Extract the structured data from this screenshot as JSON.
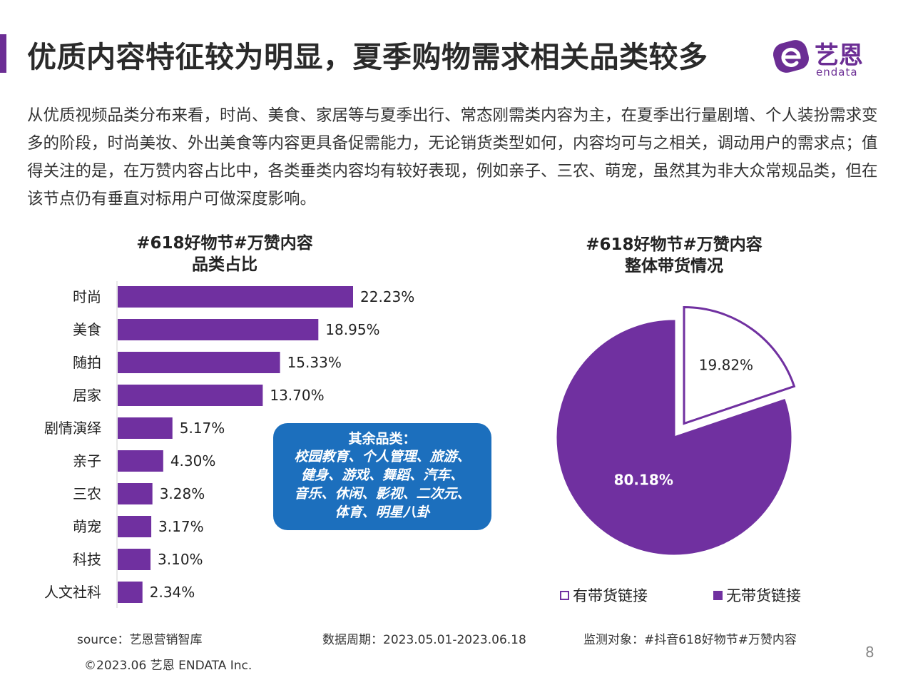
{
  "header": {
    "title": "优质内容特征较为明显，夏季购物需求相关品类较多",
    "logo_cn": "艺恩",
    "logo_en": "endata"
  },
  "intro": "从优质视频品类分布来看，时尚、美食、家居等与夏季出行、常态刚需类内容为主，在夏季出行量剧增、个人装扮需求变多的阶段，时尚美妆、外出美食等内容更具备促需能力，无论销货类型如何，内容均可与之相关，调动用户的需求点；值得关注的是，在万赞内容占比中，各类垂类内容均有较好表现，例如亲子、三农、萌宠，虽然其为非大众常规品类，但在该节点仍有垂直对标用户可做深度影响。",
  "bar_chart_title": [
    "#618好物节#万赞内容",
    "品类占比"
  ],
  "pie_chart_title": [
    "#618好物节#万赞内容",
    "整体带货情况"
  ],
  "callout": {
    "heading": "其余品类：",
    "lines": [
      "校园教育、个人管理、旅游、",
      "健身、游戏、舞蹈、汽车、",
      "音乐、休闲、影视、二次元、",
      "体育、明星八卦"
    ]
  },
  "colors": {
    "accent": "#6b2d94",
    "bar": "#7030a0",
    "callout": "#1c6fbd",
    "pie_highlight": "#ffffff"
  },
  "chart_data": [
    {
      "type": "bar",
      "orientation": "horizontal",
      "categories": [
        "时尚",
        "美食",
        "随拍",
        "居家",
        "剧情演绎",
        "亲子",
        "三农",
        "萌宠",
        "科技",
        "人文社科"
      ],
      "values": [
        22.23,
        18.95,
        15.33,
        13.7,
        5.17,
        4.3,
        3.28,
        3.17,
        3.1,
        2.34
      ],
      "labels": [
        "22.23%",
        "18.95%",
        "15.33%",
        "13.70%",
        "5.17%",
        "4.30%",
        "3.28%",
        "3.17%",
        "3.10%",
        "2.34%"
      ],
      "grid": false
    },
    {
      "type": "pie",
      "slices": [
        {
          "name": "有带货链接",
          "value": 19.82,
          "label": "19.82%",
          "exploded": true
        },
        {
          "name": "无带货链接",
          "value": 80.18,
          "label": "80.18%",
          "exploded": false
        }
      ],
      "legend_position": "bottom"
    }
  ],
  "footer": {
    "source": "source：艺恩营销智库",
    "period": "数据周期：2023.05.01-2023.06.18",
    "target": "监测对象：#抖音618好物节#万赞内容",
    "copyright": "©2023.06 艺恩 ENDATA Inc.",
    "page_number": "8"
  }
}
